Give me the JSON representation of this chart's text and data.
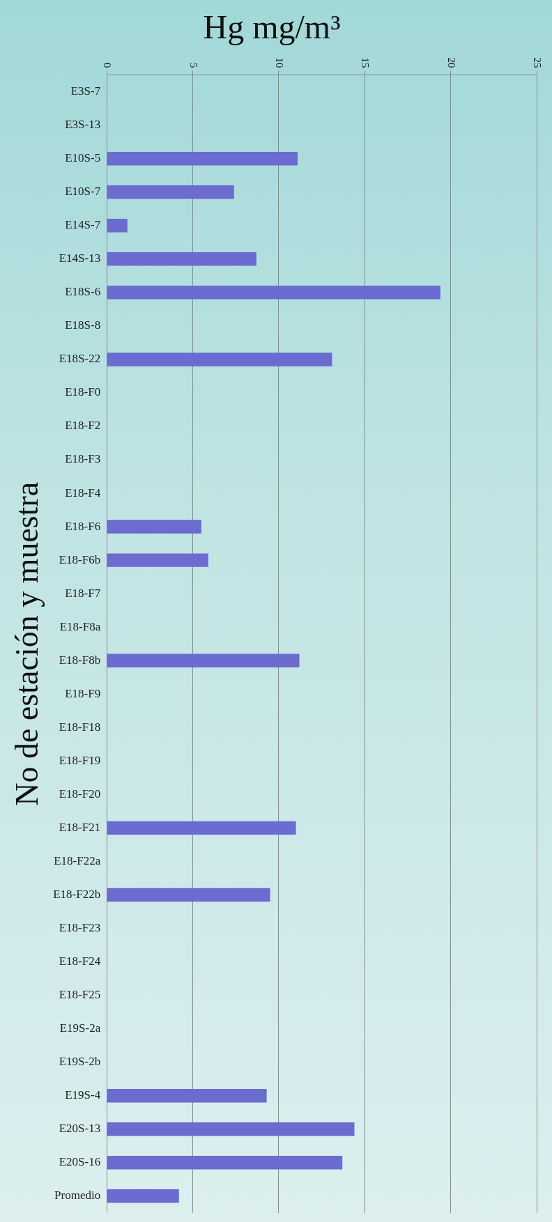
{
  "chart_data": {
    "type": "bar",
    "orientation": "horizontal",
    "title": "Hg mg/m³",
    "ylabel": "No de estación y muestra",
    "categories": [
      "E3S-7",
      "E3S-13",
      "E10S-5",
      "E10S-7",
      "E14S-7",
      "E14S-13",
      "E18S-6",
      "E18S-8",
      "E18S-22",
      "E18-F0",
      "E18-F2",
      "E18-F3",
      "E18-F4",
      "E18-F6",
      "E18-F6b",
      "E18-F7",
      "E18-F8a",
      "E18-F8b",
      "E18-F9",
      "E18-F18",
      "E18-F19",
      "E18-F20",
      "E18-F21",
      "E18-F22a",
      "E18-F22b",
      "E18-F23",
      "E18-F24",
      "E18-F25",
      "E19S-2a",
      "E19S-2b",
      "E19S-4",
      "E20S-13",
      "E20S-16",
      "Promedio"
    ],
    "values": [
      null,
      null,
      11.1,
      7.4,
      1.2,
      8.7,
      19.4,
      null,
      13.1,
      null,
      null,
      null,
      null,
      5.5,
      5.9,
      null,
      null,
      11.2,
      null,
      null,
      null,
      null,
      11.0,
      null,
      9.5,
      null,
      null,
      null,
      null,
      null,
      9.3,
      14.4,
      13.7,
      4.2
    ],
    "color": "#6b6bd0",
    "xlim": [
      0,
      25
    ],
    "xticks": [
      0,
      5,
      10,
      15,
      20,
      25
    ],
    "grid": "x"
  }
}
